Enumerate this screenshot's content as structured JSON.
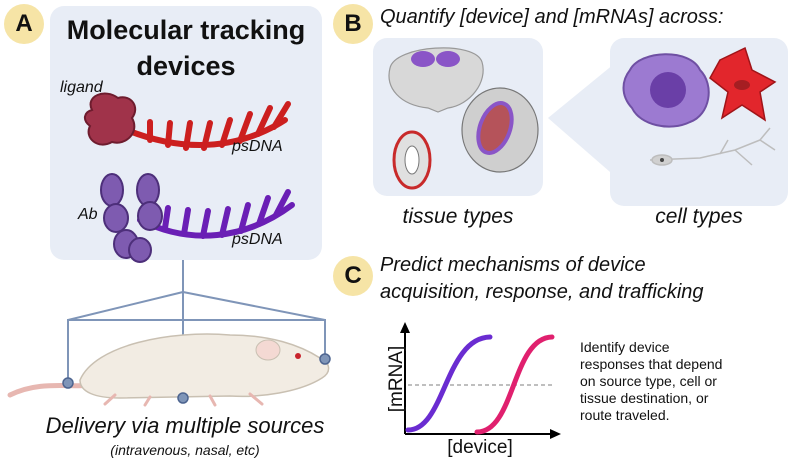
{
  "panel_a": {
    "badge": "A",
    "title_line1": "Molecular tracking",
    "title_line2": "devices",
    "ligand_label": "ligand",
    "ab_label": "Ab",
    "psdna_label_1": "psDNA",
    "psdna_label_2": "psDNA",
    "delivery_title": "Delivery via multiple sources",
    "delivery_sub": "(intravenous, nasal, etc)"
  },
  "panel_b": {
    "badge": "B",
    "title": "Quantify [device] and [mRNAs] across:",
    "tissue_label": "tissue types",
    "cell_label": "cell types"
  },
  "panel_c": {
    "badge": "C",
    "title_line1": "Predict mechanisms of device",
    "title_line2": "acquisition, response, and trafficking",
    "y_label": "[mRNA]",
    "x_label": "[device]",
    "description": [
      "Identify device",
      "responses that depend",
      "on source type, cell or",
      "tissue destination, or",
      "route traveled."
    ]
  },
  "colors": {
    "badge": "#f6e4a6",
    "panel_bg": "#e8edf6",
    "red_strand": "#cc1f1f",
    "purple_strand": "#6a1fb5",
    "ligand": "#a0334a",
    "antibody": "#7e5bb0",
    "curve_purple": "#6a2cd1",
    "curve_pink": "#e0206e",
    "connector": "#7f95b8"
  },
  "icons": [
    "mouse-illustration",
    "brain-section",
    "kidney-section",
    "tumor-section",
    "macrophage-cell",
    "fibroblast-cell",
    "neuron-cell"
  ]
}
